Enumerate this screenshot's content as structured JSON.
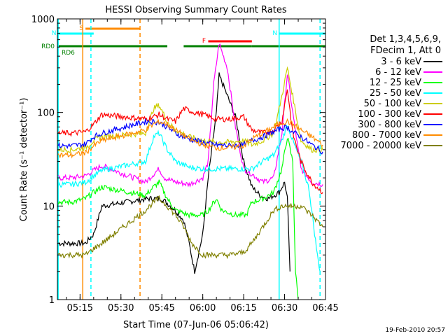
{
  "chart_data": {
    "type": "line",
    "title": "HESSI Observing Summary Count Rates",
    "xlabel": "Start Time (07-Jun-06 05:06:42)",
    "ylabel": "Count Rate (s⁻¹ detector⁻¹)",
    "yscale": "log",
    "ylim": [
      1,
      1000
    ],
    "xlim": [
      "05:06:42",
      "06:45:00"
    ],
    "x_ticks": [
      "05:15",
      "05:30",
      "05:45",
      "06:00",
      "06:15",
      "06:30",
      "06:45"
    ],
    "y_ticks": [
      "1",
      "10",
      "100",
      "1000"
    ],
    "grid": false,
    "legend_position": "right",
    "legend_header": [
      "Det 1,3,4,5,6,9,",
      "FDecim 1, Att 0"
    ],
    "timestamp": "19-Feb-2010 20:57",
    "flags": [
      {
        "label": "S",
        "color": "#ff8c00",
        "start": "05:17",
        "end": "05:37"
      },
      {
        "label": "N",
        "color": "#00ffff",
        "start": "05:07",
        "end": "05:20"
      },
      {
        "label": "N",
        "color": "#00ffff",
        "start": "06:28",
        "end": "06:45"
      },
      {
        "label": "F",
        "color": "#ff0000",
        "start": "06:02",
        "end": "06:18"
      },
      {
        "label": "RD0",
        "color": "#008000",
        "start": "05:07",
        "end": "05:37"
      },
      {
        "label": "RD0",
        "color": "#008000",
        "start": "05:37",
        "end": "05:47"
      },
      {
        "label": "RD0",
        "color": "#008000",
        "start": "05:53",
        "end": "06:18"
      },
      {
        "label": "RD0",
        "color": "#008000",
        "start": "06:18",
        "end": "06:45"
      }
    ],
    "flag_row_labels": [
      "RD0",
      "RD6"
    ],
    "markers": [
      {
        "time": "05:16",
        "color": "#ff8c00",
        "style": "solid"
      },
      {
        "time": "05:37",
        "color": "#ff8c00",
        "style": "dashed"
      },
      {
        "time": "05:07",
        "color": "#00ffff",
        "style": "solid"
      },
      {
        "time": "05:19",
        "color": "#00ffff",
        "style": "dashed"
      },
      {
        "time": "06:28",
        "color": "#00ffff",
        "style": "solid"
      },
      {
        "time": "06:43",
        "color": "#00ffff",
        "style": "dashed"
      }
    ],
    "series": [
      {
        "name": "3 - 6 keV",
        "color": "#000000",
        "points": [
          [
            "05:07",
            4
          ],
          [
            "05:12",
            4
          ],
          [
            "05:17",
            4
          ],
          [
            "05:20",
            5
          ],
          [
            "05:23",
            10
          ],
          [
            "05:40",
            12
          ],
          [
            "05:45",
            12
          ],
          [
            "05:50",
            9
          ],
          [
            "05:53",
            7
          ],
          [
            "05:55",
            4
          ],
          [
            "05:57",
            2
          ],
          [
            "06:00",
            5
          ],
          [
            "06:02",
            20
          ],
          [
            "06:05",
            100
          ],
          [
            "06:06",
            250
          ],
          [
            "06:08",
            180
          ],
          [
            "06:12",
            90
          ],
          [
            "06:15",
            30
          ],
          [
            "06:18",
            16
          ],
          [
            "06:21",
            13
          ],
          [
            "06:24",
            12
          ],
          [
            "06:28",
            14
          ],
          [
            "06:30",
            18
          ],
          [
            "06:31",
            12
          ],
          [
            "06:32",
            2
          ]
        ]
      },
      {
        "name": "6 - 12 keV",
        "color": "#ff00ff",
        "points": [
          [
            "05:07",
            20
          ],
          [
            "05:12",
            20
          ],
          [
            "05:17",
            21
          ],
          [
            "05:20",
            24
          ],
          [
            "05:23",
            27
          ],
          [
            "05:39",
            18
          ],
          [
            "05:42",
            22
          ],
          [
            "05:44",
            25
          ],
          [
            "05:46",
            20
          ],
          [
            "05:50",
            18
          ],
          [
            "05:55",
            17
          ],
          [
            "06:00",
            20
          ],
          [
            "06:02",
            30
          ],
          [
            "06:04",
            200
          ],
          [
            "06:06",
            550
          ],
          [
            "06:09",
            300
          ],
          [
            "06:12",
            70
          ],
          [
            "06:15",
            25
          ],
          [
            "06:18",
            22
          ],
          [
            "06:22",
            18
          ],
          [
            "06:26",
            20
          ],
          [
            "06:29",
            60
          ],
          [
            "06:31",
            260
          ],
          [
            "06:33",
            100
          ],
          [
            "06:36",
            25
          ],
          [
            "06:40",
            18
          ],
          [
            "06:44",
            17
          ]
        ]
      },
      {
        "name": "12 - 25 keV",
        "color": "#00ff00",
        "points": [
          [
            "05:07",
            11
          ],
          [
            "05:12",
            11
          ],
          [
            "05:17",
            12
          ],
          [
            "05:20",
            14
          ],
          [
            "05:23",
            16
          ],
          [
            "05:39",
            13
          ],
          [
            "05:42",
            16
          ],
          [
            "05:44",
            18
          ],
          [
            "05:47",
            12
          ],
          [
            "05:50",
            9
          ],
          [
            "05:55",
            8
          ],
          [
            "06:00",
            8
          ],
          [
            "06:02",
            9
          ],
          [
            "06:05",
            12
          ],
          [
            "06:07",
            9
          ],
          [
            "06:12",
            8
          ],
          [
            "06:16",
            8
          ],
          [
            "06:18",
            11
          ],
          [
            "06:22",
            12
          ],
          [
            "06:26",
            14
          ],
          [
            "06:29",
            25
          ],
          [
            "06:31",
            55
          ],
          [
            "06:33",
            30
          ],
          [
            "06:34",
            2
          ],
          [
            "06:35",
            1
          ]
        ]
      },
      {
        "name": "25 - 50 keV",
        "color": "#00ffff",
        "points": [
          [
            "05:07",
            17
          ],
          [
            "05:12",
            17
          ],
          [
            "05:17",
            18
          ],
          [
            "05:20",
            21
          ],
          [
            "05:23",
            24
          ],
          [
            "05:39",
            30
          ],
          [
            "05:42",
            55
          ],
          [
            "05:44",
            60
          ],
          [
            "05:47",
            40
          ],
          [
            "05:50",
            30
          ],
          [
            "05:55",
            26
          ],
          [
            "06:00",
            25
          ],
          [
            "06:05",
            25
          ],
          [
            "06:10",
            25
          ],
          [
            "06:15",
            25
          ],
          [
            "06:18",
            25
          ],
          [
            "06:22",
            30
          ],
          [
            "06:26",
            35
          ],
          [
            "06:29",
            50
          ],
          [
            "06:31",
            75
          ],
          [
            "06:33",
            50
          ],
          [
            "06:36",
            30
          ],
          [
            "06:39",
            15
          ],
          [
            "06:42",
            3
          ],
          [
            "06:43",
            2
          ]
        ]
      },
      {
        "name": "50 - 100 keV",
        "color": "#cccc00",
        "points": [
          [
            "05:07",
            40
          ],
          [
            "05:12",
            40
          ],
          [
            "05:17",
            42
          ],
          [
            "05:20",
            50
          ],
          [
            "05:23",
            55
          ],
          [
            "05:39",
            60
          ],
          [
            "05:42",
            110
          ],
          [
            "05:44",
            120
          ],
          [
            "05:47",
            80
          ],
          [
            "05:50",
            65
          ],
          [
            "05:55",
            55
          ],
          [
            "06:00",
            50
          ],
          [
            "06:05",
            48
          ],
          [
            "06:10",
            48
          ],
          [
            "06:15",
            50
          ],
          [
            "06:18",
            45
          ],
          [
            "06:22",
            50
          ],
          [
            "06:26",
            60
          ],
          [
            "06:29",
            150
          ],
          [
            "06:31",
            300
          ],
          [
            "06:33",
            150
          ],
          [
            "06:36",
            50
          ],
          [
            "06:40",
            40
          ],
          [
            "06:44",
            40
          ]
        ]
      },
      {
        "name": "100 - 300 keV",
        "color": "#ff0000",
        "points": [
          [
            "05:07",
            60
          ],
          [
            "05:12",
            60
          ],
          [
            "05:17",
            62
          ],
          [
            "05:20",
            75
          ],
          [
            "05:23",
            95
          ],
          [
            "05:39",
            85
          ],
          [
            "05:42",
            90
          ],
          [
            "05:44",
            95
          ],
          [
            "05:47",
            85
          ],
          [
            "05:50",
            80
          ],
          [
            "05:53",
            110
          ],
          [
            "05:57",
            100
          ],
          [
            "06:00",
            95
          ],
          [
            "06:05",
            85
          ],
          [
            "06:10",
            85
          ],
          [
            "06:15",
            90
          ],
          [
            "06:18",
            65
          ],
          [
            "06:22",
            60
          ],
          [
            "06:26",
            65
          ],
          [
            "06:29",
            80
          ],
          [
            "06:31",
            180
          ],
          [
            "06:33",
            60
          ],
          [
            "06:36",
            30
          ],
          [
            "06:40",
            18
          ],
          [
            "06:44",
            14
          ]
        ]
      },
      {
        "name": "300 - 800 keV",
        "color": "#0000ff",
        "points": [
          [
            "05:07",
            44
          ],
          [
            "05:12",
            44
          ],
          [
            "05:17",
            46
          ],
          [
            "05:20",
            55
          ],
          [
            "05:23",
            60
          ],
          [
            "05:39",
            80
          ],
          [
            "05:42",
            80
          ],
          [
            "05:44",
            78
          ],
          [
            "05:47",
            70
          ],
          [
            "05:50",
            60
          ],
          [
            "05:55",
            52
          ],
          [
            "06:00",
            48
          ],
          [
            "06:05",
            45
          ],
          [
            "06:10",
            44
          ],
          [
            "06:15",
            45
          ],
          [
            "06:18",
            50
          ],
          [
            "06:22",
            55
          ],
          [
            "06:26",
            62
          ],
          [
            "06:29",
            68
          ],
          [
            "06:31",
            70
          ],
          [
            "06:33",
            62
          ],
          [
            "06:36",
            55
          ],
          [
            "06:40",
            45
          ],
          [
            "06:44",
            38
          ]
        ]
      },
      {
        "name": "800 - 7000 keV",
        "color": "#ff8c00",
        "points": [
          [
            "05:07",
            35
          ],
          [
            "05:12",
            35
          ],
          [
            "05:17",
            37
          ],
          [
            "05:20",
            44
          ],
          [
            "05:23",
            50
          ],
          [
            "05:39",
            65
          ],
          [
            "05:42",
            75
          ],
          [
            "05:44",
            80
          ],
          [
            "05:47",
            75
          ],
          [
            "05:50",
            65
          ],
          [
            "05:55",
            52
          ],
          [
            "06:00",
            45
          ],
          [
            "06:05",
            42
          ],
          [
            "06:10",
            42
          ],
          [
            "06:15",
            44
          ],
          [
            "06:18",
            52
          ],
          [
            "06:22",
            60
          ],
          [
            "06:26",
            70
          ],
          [
            "06:29",
            78
          ],
          [
            "06:31",
            80
          ],
          [
            "06:33",
            75
          ],
          [
            "06:36",
            65
          ],
          [
            "06:40",
            55
          ],
          [
            "06:44",
            45
          ]
        ]
      },
      {
        "name": "7000 - 20000 keV",
        "color": "#808000",
        "points": [
          [
            "05:07",
            3
          ],
          [
            "05:12",
            3
          ],
          [
            "05:17",
            3
          ],
          [
            "05:20",
            3.5
          ],
          [
            "05:23",
            4
          ],
          [
            "05:39",
            9
          ],
          [
            "05:42",
            11
          ],
          [
            "05:44",
            12
          ],
          [
            "05:47",
            10
          ],
          [
            "05:50",
            8
          ],
          [
            "05:53",
            6
          ],
          [
            "05:56",
            4
          ],
          [
            "06:00",
            3
          ],
          [
            "06:05",
            3
          ],
          [
            "06:10",
            3
          ],
          [
            "06:15",
            3.2
          ],
          [
            "06:18",
            4
          ],
          [
            "06:22",
            6
          ],
          [
            "06:26",
            9
          ],
          [
            "06:29",
            10
          ],
          [
            "06:31",
            10
          ],
          [
            "06:33",
            10
          ],
          [
            "06:36",
            10
          ],
          [
            "06:40",
            8
          ],
          [
            "06:44",
            6
          ]
        ]
      }
    ]
  }
}
